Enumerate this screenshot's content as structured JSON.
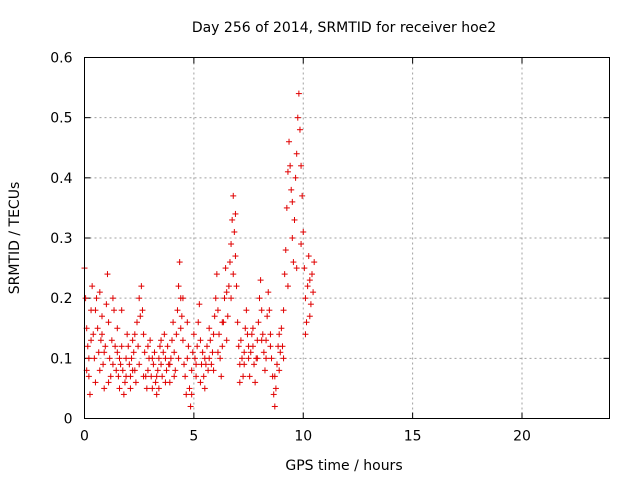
{
  "chart_data": {
    "type": "scatter",
    "title": "Day 256 of 2014, SRMTID for receiver hoe2",
    "xlabel": "GPS time / hours",
    "ylabel": "SRMTID / TECUs",
    "xlim": [
      0,
      24
    ],
    "ylim": [
      0,
      0.6
    ],
    "xticks": [
      0,
      5,
      10,
      15,
      20
    ],
    "yticks": [
      0,
      0.1,
      0.2,
      0.3,
      0.4,
      0.5,
      0.6
    ],
    "ytick_labels": [
      "0",
      "0.1",
      "0.2",
      "0.3",
      "0.4",
      "0.5",
      "0.6"
    ],
    "grid": true,
    "marker": "+",
    "color": "#e00000",
    "series": [
      {
        "name": "hoe2",
        "points": [
          [
            0.0,
            0.25
          ],
          [
            0.05,
            0.2
          ],
          [
            0.1,
            0.15
          ],
          [
            0.15,
            0.12
          ],
          [
            0.2,
            0.07
          ],
          [
            0.25,
            0.04
          ],
          [
            0.3,
            0.18
          ],
          [
            0.35,
            0.22
          ],
          [
            0.4,
            0.14
          ],
          [
            0.45,
            0.1
          ],
          [
            0.5,
            0.06
          ],
          [
            0.55,
            0.2
          ],
          [
            0.6,
            0.15
          ],
          [
            0.65,
            0.11
          ],
          [
            0.7,
            0.08
          ],
          [
            0.75,
            0.13
          ],
          [
            0.8,
            0.17
          ],
          [
            0.85,
            0.09
          ],
          [
            0.9,
            0.05
          ],
          [
            0.95,
            0.12
          ],
          [
            1.0,
            0.19
          ],
          [
            1.05,
            0.24
          ],
          [
            1.1,
            0.16
          ],
          [
            1.15,
            0.1
          ],
          [
            1.2,
            0.07
          ],
          [
            1.25,
            0.13
          ],
          [
            1.3,
            0.2
          ],
          [
            1.35,
            0.18
          ],
          [
            1.4,
            0.12
          ],
          [
            1.45,
            0.08
          ],
          [
            1.5,
            0.11
          ],
          [
            1.55,
            0.07
          ],
          [
            1.6,
            0.05
          ],
          [
            1.65,
            0.09
          ],
          [
            1.7,
            0.12
          ],
          [
            1.75,
            0.08
          ],
          [
            1.8,
            0.04
          ],
          [
            1.85,
            0.06
          ],
          [
            1.9,
            0.1
          ],
          [
            1.95,
            0.14
          ],
          [
            2.0,
            0.12
          ],
          [
            2.05,
            0.09
          ],
          [
            2.1,
            0.07
          ],
          [
            2.15,
            0.1
          ],
          [
            2.2,
            0.13
          ],
          [
            2.25,
            0.11
          ],
          [
            2.3,
            0.08
          ],
          [
            2.35,
            0.06
          ],
          [
            2.4,
            0.16
          ],
          [
            2.45,
            0.12
          ],
          [
            2.5,
            0.2
          ],
          [
            2.55,
            0.17
          ],
          [
            2.6,
            0.22
          ],
          [
            2.65,
            0.18
          ],
          [
            2.7,
            0.14
          ],
          [
            2.75,
            0.11
          ],
          [
            2.8,
            0.07
          ],
          [
            2.85,
            0.05
          ],
          [
            2.9,
            0.08
          ],
          [
            2.95,
            0.1
          ],
          [
            3.0,
            0.13
          ],
          [
            3.05,
            0.07
          ],
          [
            3.1,
            0.05
          ],
          [
            3.15,
            0.09
          ],
          [
            3.2,
            0.11
          ],
          [
            3.25,
            0.06
          ],
          [
            3.3,
            0.04
          ],
          [
            3.35,
            0.08
          ],
          [
            3.4,
            0.1
          ],
          [
            3.45,
            0.12
          ],
          [
            3.5,
            0.09
          ],
          [
            3.55,
            0.07
          ],
          [
            3.6,
            0.11
          ],
          [
            3.65,
            0.14
          ],
          [
            3.7,
            0.1
          ],
          [
            3.75,
            0.08
          ],
          [
            3.8,
            0.12
          ],
          [
            3.85,
            0.09
          ],
          [
            3.9,
            0.06
          ],
          [
            3.95,
            0.1
          ],
          [
            4.0,
            0.13
          ],
          [
            4.05,
            0.16
          ],
          [
            4.1,
            0.11
          ],
          [
            4.15,
            0.08
          ],
          [
            4.2,
            0.14
          ],
          [
            4.25,
            0.18
          ],
          [
            4.3,
            0.22
          ],
          [
            4.35,
            0.26
          ],
          [
            4.4,
            0.2
          ],
          [
            4.45,
            0.17
          ],
          [
            4.5,
            0.13
          ],
          [
            4.55,
            0.09
          ],
          [
            4.6,
            0.07
          ],
          [
            4.65,
            0.04
          ],
          [
            4.7,
            0.1
          ],
          [
            4.75,
            0.12
          ],
          [
            4.8,
            0.05
          ],
          [
            4.85,
            0.02
          ],
          [
            4.9,
            0.08
          ],
          [
            4.95,
            0.11
          ],
          [
            5.0,
            0.14
          ],
          [
            5.05,
            0.1
          ],
          [
            5.1,
            0.07
          ],
          [
            5.15,
            0.12
          ],
          [
            5.2,
            0.16
          ],
          [
            5.25,
            0.19
          ],
          [
            5.3,
            0.13
          ],
          [
            5.35,
            0.09
          ],
          [
            5.4,
            0.11
          ],
          [
            5.45,
            0.07
          ],
          [
            5.5,
            0.05
          ],
          [
            5.55,
            0.09
          ],
          [
            5.6,
            0.12
          ],
          [
            5.65,
            0.08
          ],
          [
            5.7,
            0.1
          ],
          [
            5.75,
            0.13
          ],
          [
            5.8,
            0.09
          ],
          [
            5.85,
            0.11
          ],
          [
            5.9,
            0.14
          ],
          [
            5.95,
            0.17
          ],
          [
            6.0,
            0.2
          ],
          [
            6.05,
            0.24
          ],
          [
            6.1,
            0.18
          ],
          [
            6.15,
            0.14
          ],
          [
            6.2,
            0.1
          ],
          [
            6.25,
            0.07
          ],
          [
            6.3,
            0.12
          ],
          [
            6.35,
            0.16
          ],
          [
            6.4,
            0.2
          ],
          [
            6.45,
            0.25
          ],
          [
            6.5,
            0.21
          ],
          [
            6.55,
            0.17
          ],
          [
            6.6,
            0.22
          ],
          [
            6.65,
            0.26
          ],
          [
            6.7,
            0.29
          ],
          [
            6.75,
            0.33
          ],
          [
            6.8,
            0.37
          ],
          [
            6.85,
            0.31
          ],
          [
            6.9,
            0.27
          ],
          [
            6.95,
            0.22
          ],
          [
            7.0,
            0.16
          ],
          [
            7.05,
            0.12
          ],
          [
            7.1,
            0.09
          ],
          [
            7.15,
            0.13
          ],
          [
            7.2,
            0.1
          ],
          [
            7.25,
            0.07
          ],
          [
            7.3,
            0.11
          ],
          [
            7.35,
            0.15
          ],
          [
            7.4,
            0.18
          ],
          [
            7.45,
            0.14
          ],
          [
            7.5,
            0.1
          ],
          [
            7.55,
            0.07
          ],
          [
            7.6,
            0.11
          ],
          [
            7.65,
            0.14
          ],
          [
            7.7,
            0.12
          ],
          [
            7.75,
            0.09
          ],
          [
            7.8,
            0.06
          ],
          [
            7.85,
            0.1
          ],
          [
            7.9,
            0.13
          ],
          [
            7.95,
            0.16
          ],
          [
            8.0,
            0.2
          ],
          [
            8.05,
            0.23
          ],
          [
            8.1,
            0.18
          ],
          [
            8.15,
            0.14
          ],
          [
            8.2,
            0.11
          ],
          [
            8.25,
            0.08
          ],
          [
            8.3,
            0.13
          ],
          [
            8.35,
            0.17
          ],
          [
            8.4,
            0.21
          ],
          [
            8.45,
            0.18
          ],
          [
            8.5,
            0.14
          ],
          [
            8.55,
            0.1
          ],
          [
            8.6,
            0.07
          ],
          [
            8.65,
            0.04
          ],
          [
            8.7,
            0.02
          ],
          [
            8.75,
            0.05
          ],
          [
            8.8,
            0.09
          ],
          [
            8.85,
            0.12
          ],
          [
            8.9,
            0.08
          ],
          [
            8.95,
            0.11
          ],
          [
            9.0,
            0.15
          ],
          [
            9.05,
            0.12
          ],
          [
            9.1,
            0.18
          ],
          [
            9.15,
            0.24
          ],
          [
            9.2,
            0.28
          ],
          [
            9.25,
            0.35
          ],
          [
            9.3,
            0.41
          ],
          [
            9.35,
            0.46
          ],
          [
            9.4,
            0.42
          ],
          [
            9.45,
            0.38
          ],
          [
            9.5,
            0.3
          ],
          [
            9.55,
            0.26
          ],
          [
            9.6,
            0.33
          ],
          [
            9.65,
            0.4
          ],
          [
            9.7,
            0.44
          ],
          [
            9.75,
            0.5
          ],
          [
            9.8,
            0.54
          ],
          [
            9.85,
            0.48
          ],
          [
            9.9,
            0.42
          ],
          [
            9.95,
            0.37
          ],
          [
            10.0,
            0.31
          ],
          [
            10.05,
            0.25
          ],
          [
            10.1,
            0.2
          ],
          [
            10.15,
            0.16
          ],
          [
            10.2,
            0.22
          ],
          [
            10.25,
            0.27
          ],
          [
            10.3,
            0.23
          ],
          [
            10.35,
            0.19
          ],
          [
            10.4,
            0.24
          ],
          [
            10.45,
            0.21
          ],
          [
            0.1,
            0.08
          ],
          [
            0.3,
            0.13
          ],
          [
            0.5,
            0.18
          ],
          [
            0.7,
            0.21
          ],
          [
            0.9,
            0.11
          ],
          [
            1.1,
            0.06
          ],
          [
            1.3,
            0.09
          ],
          [
            1.5,
            0.15
          ],
          [
            1.7,
            0.18
          ],
          [
            1.9,
            0.07
          ],
          [
            2.1,
            0.05
          ],
          [
            2.3,
            0.14
          ],
          [
            2.5,
            0.09
          ],
          [
            2.7,
            0.07
          ],
          [
            2.9,
            0.12
          ],
          [
            3.1,
            0.1
          ],
          [
            3.3,
            0.07
          ],
          [
            3.5,
            0.13
          ],
          [
            3.7,
            0.06
          ],
          [
            3.9,
            0.09
          ],
          [
            4.1,
            0.07
          ],
          [
            4.3,
            0.1
          ],
          [
            4.5,
            0.2
          ],
          [
            4.7,
            0.16
          ],
          [
            4.9,
            0.04
          ],
          [
            5.1,
            0.09
          ],
          [
            5.3,
            0.06
          ],
          [
            5.5,
            0.1
          ],
          [
            5.7,
            0.15
          ],
          [
            5.9,
            0.08
          ],
          [
            6.1,
            0.11
          ],
          [
            6.3,
            0.16
          ],
          [
            6.5,
            0.13
          ],
          [
            6.7,
            0.2
          ],
          [
            6.9,
            0.34
          ],
          [
            7.1,
            0.06
          ],
          [
            7.3,
            0.09
          ],
          [
            7.5,
            0.12
          ],
          [
            7.7,
            0.15
          ],
          [
            7.9,
            0.1
          ],
          [
            8.1,
            0.13
          ],
          [
            8.3,
            0.1
          ],
          [
            8.5,
            0.12
          ],
          [
            8.7,
            0.07
          ],
          [
            8.9,
            0.14
          ],
          [
            9.1,
            0.1
          ],
          [
            9.3,
            0.22
          ],
          [
            9.5,
            0.36
          ],
          [
            9.7,
            0.25
          ],
          [
            9.9,
            0.29
          ],
          [
            10.1,
            0.14
          ],
          [
            10.3,
            0.17
          ],
          [
            10.5,
            0.26
          ],
          [
            0.2,
            0.1
          ],
          [
            0.8,
            0.14
          ],
          [
            1.6,
            0.1
          ],
          [
            2.2,
            0.08
          ],
          [
            3.4,
            0.05
          ],
          [
            4.4,
            0.15
          ],
          [
            6.8,
            0.24
          ]
        ]
      }
    ]
  }
}
